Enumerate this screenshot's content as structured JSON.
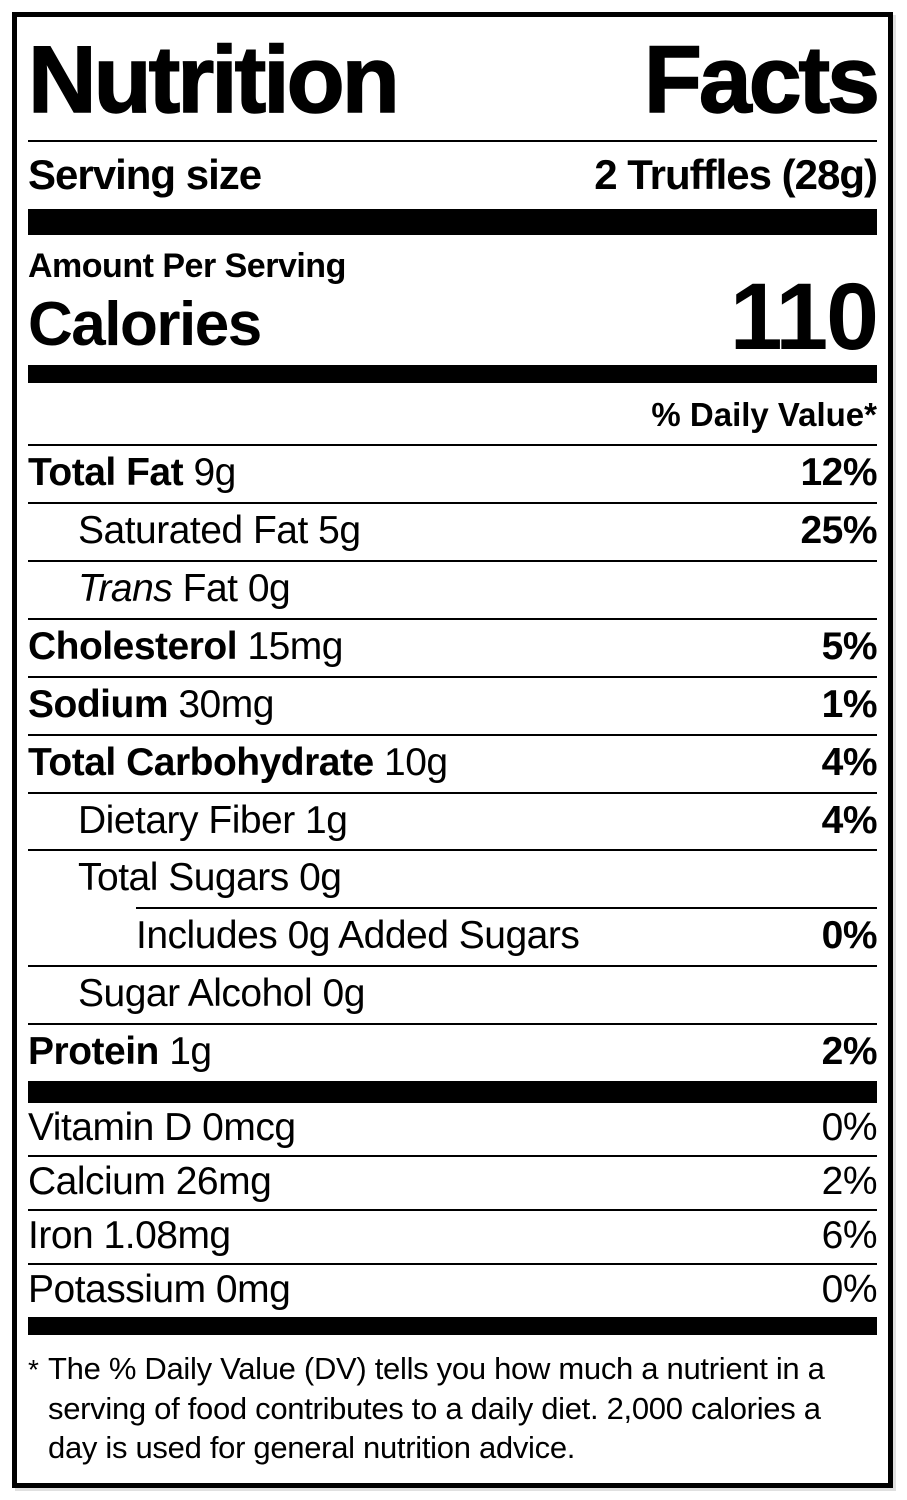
{
  "header": {
    "title_word1": "Nutrition",
    "title_word2": "Facts",
    "serving_size_label": "Serving size",
    "serving_size_value": "2 Truffles (28g)"
  },
  "calories_section": {
    "amount_label": "Amount Per Serving",
    "calories_label": "Calories",
    "calories_value": "110"
  },
  "daily_value_header": "% Daily Value*",
  "nutrients": [
    {
      "bold": "Total Fat",
      "rest": "9g",
      "pct": "12%",
      "indent": 0
    },
    {
      "rest": "Saturated Fat 5g",
      "pct": "25%",
      "indent": 1
    },
    {
      "italic": "Trans",
      "rest": "Fat 0g",
      "pct": "",
      "indent": 1
    },
    {
      "bold": "Cholesterol",
      "rest": "15mg",
      "pct": "5%",
      "indent": 0
    },
    {
      "bold": "Sodium",
      "rest": "30mg",
      "pct": "1%",
      "indent": 0
    },
    {
      "bold": "Total Carbohydrate",
      "rest": "10g",
      "pct": "4%",
      "indent": 0
    },
    {
      "rest": "Dietary Fiber 1g",
      "pct": "4%",
      "indent": 1
    },
    {
      "rest": "Total Sugars 0g",
      "pct": "",
      "indent": 1
    },
    {
      "rest": "Includes 0g Added Sugars",
      "pct": "0%",
      "indent": 2
    },
    {
      "rest": "Sugar Alcohol 0g",
      "pct": "",
      "indent": 1
    },
    {
      "bold": "Protein",
      "rest": "1g",
      "pct": "2%",
      "indent": 0
    }
  ],
  "vitamins": [
    {
      "name": "Vitamin D 0mcg",
      "pct": "0%"
    },
    {
      "name": "Calcium 26mg",
      "pct": "2%"
    },
    {
      "name": "Iron 1.08mg",
      "pct": "6%"
    },
    {
      "name": "Potassium 0mg",
      "pct": "0%"
    }
  ],
  "footnote": {
    "asterisk": "*",
    "text": "The % Daily Value (DV) tells you how much a nutrient in a serving of food contributes to a daily diet. 2,000 calories a day is used for general nutrition advice."
  },
  "colors": {
    "text": "#000000",
    "background": "#ffffff"
  }
}
